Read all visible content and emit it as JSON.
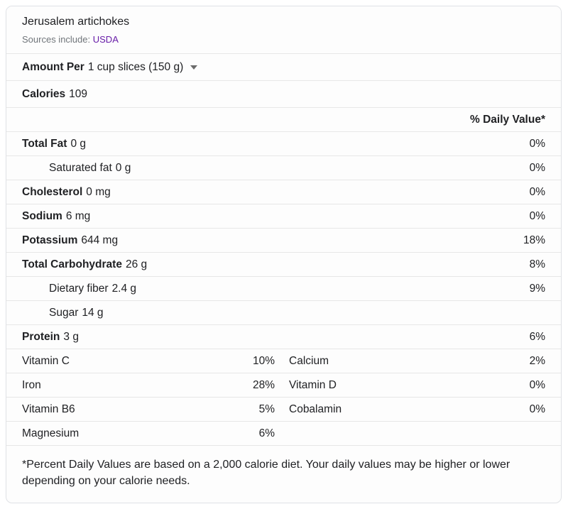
{
  "header": {
    "title": "Jerusalem artichokes",
    "sources_label": "Sources include:",
    "source_link": "USDA"
  },
  "serving": {
    "label": "Amount Per",
    "value": "1 cup slices (150 g)",
    "dropdown_icon": "caret-down-icon"
  },
  "calories": {
    "label": "Calories",
    "value": "109"
  },
  "daily_value_header": "% Daily Value*",
  "nutrients": [
    {
      "label": "Total Fat",
      "amount": "0 g",
      "dv": "0%"
    },
    {
      "label": "Saturated fat",
      "amount": "0 g",
      "dv": "0%"
    },
    {
      "label": "Cholesterol",
      "amount": "0 mg",
      "dv": "0%"
    },
    {
      "label": "Sodium",
      "amount": "6 mg",
      "dv": "0%"
    },
    {
      "label": "Potassium",
      "amount": "644 mg",
      "dv": "18%"
    },
    {
      "label": "Total Carbohydrate",
      "amount": "26 g",
      "dv": "8%"
    },
    {
      "label": "Dietary fiber",
      "amount": "2.4 g",
      "dv": "9%"
    },
    {
      "label": "Sugar",
      "amount": "14 g",
      "dv": ""
    },
    {
      "label": "Protein",
      "amount": "3 g",
      "dv": "6%"
    }
  ],
  "micronutrients": [
    {
      "left": {
        "label": "Vitamin C",
        "dv": "10%"
      },
      "right": {
        "label": "Calcium",
        "dv": "2%"
      }
    },
    {
      "left": {
        "label": "Iron",
        "dv": "28%"
      },
      "right": {
        "label": "Vitamin D",
        "dv": "0%"
      }
    },
    {
      "left": {
        "label": "Vitamin B6",
        "dv": "5%"
      },
      "right": {
        "label": "Cobalamin",
        "dv": "0%"
      }
    },
    {
      "left": {
        "label": "Magnesium",
        "dv": "6%"
      },
      "right": null
    }
  ],
  "footer": "*Percent Daily Values are based on a 2,000 calorie diet. Your daily values may be higher or lower depending on your calorie needs.",
  "colors": {
    "text": "#202124",
    "muted_gray": "#70757a",
    "link_purple": "#681da8",
    "divider": "#e7e7e7",
    "card_border": "#dfe1e5",
    "card_background": "#fdfdfd"
  }
}
